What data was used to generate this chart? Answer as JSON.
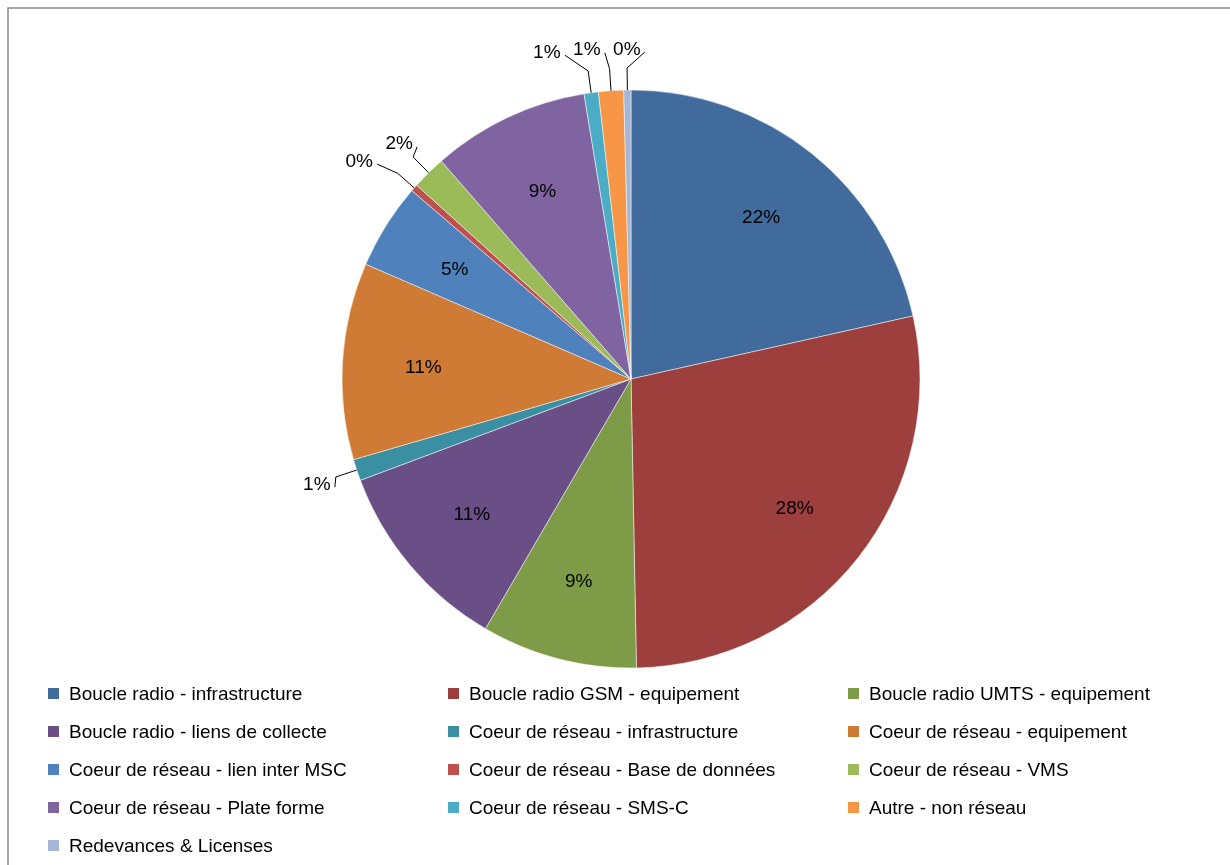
{
  "chart_data": {
    "type": "pie",
    "categories": [
      "Boucle radio - infrastructure",
      "Boucle radio GSM - equipement",
      "Boucle radio UMTS - equipement",
      "Boucle radio - liens de collecte",
      "Coeur de réseau - infrastructure",
      "Coeur de réseau - equipement",
      "Coeur de réseau - lien inter MSC",
      "Coeur de réseau - Base de données",
      "Coeur de réseau - VMS",
      "Coeur de réseau - Plate forme",
      "Coeur de réseau - SMS-C",
      "Autre - non réseau",
      "Redevances & Licenses"
    ],
    "values": [
      21.5,
      28.2,
      8.7,
      10.9,
      1.2,
      11,
      4.8,
      0.4,
      1.9,
      8.8,
      0.8,
      1.4,
      0.4
    ],
    "value_labels": [
      "22%",
      "28%",
      "9%",
      "11%",
      "1%",
      "11%",
      "5%",
      "0%",
      "2%",
      "9%",
      "1%",
      "1%",
      "0%"
    ],
    "colors": [
      "#406b9c",
      "#9c3f3d",
      "#7e9b48",
      "#6a4f86",
      "#3b8fa3",
      "#cf7b35",
      "#4f81bd",
      "#c0504d",
      "#9bbb59",
      "#8064a2",
      "#4bacc6",
      "#f79646",
      "#a5b6d6"
    ],
    "legend": "bottom"
  }
}
